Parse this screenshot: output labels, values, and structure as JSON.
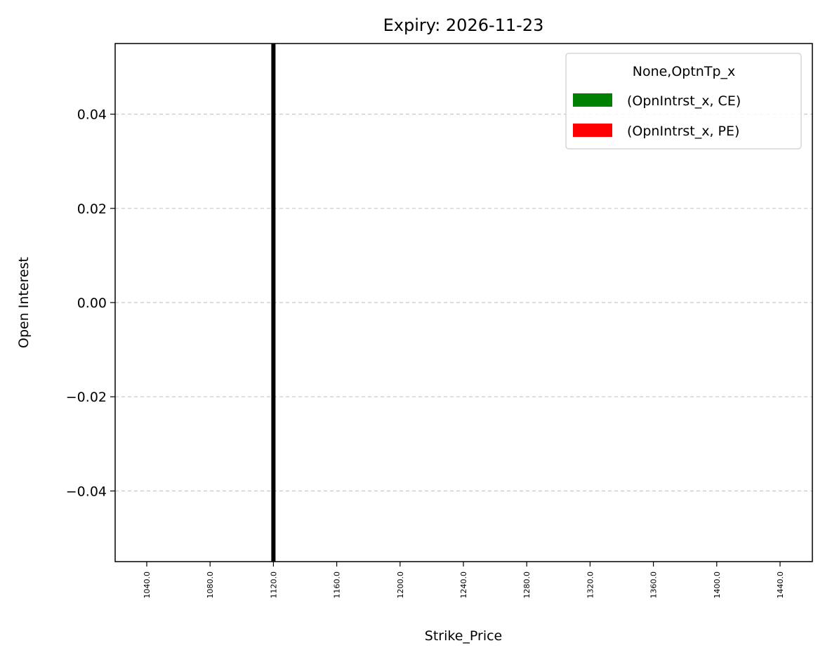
{
  "chart_data": {
    "type": "bar",
    "title": "Expiry: 2026-11-23",
    "xlabel": "Strike_Price",
    "ylabel": "Open Interest",
    "categories": [
      "1040.0",
      "1080.0",
      "1120.0",
      "1160.0",
      "1200.0",
      "1240.0",
      "1280.0",
      "1320.0",
      "1360.0",
      "1400.0",
      "1440.0"
    ],
    "series": [
      {
        "name": "(OpnIntrst_x, CE)",
        "color": "#008000",
        "values": [
          0,
          0,
          0,
          0,
          0,
          0,
          0,
          0,
          0,
          0,
          0
        ]
      },
      {
        "name": "(OpnIntrst_x, PE)",
        "color": "#ff0000",
        "values": [
          0,
          0,
          0,
          0,
          0,
          0,
          0,
          0,
          0,
          0,
          0
        ]
      }
    ],
    "ylim": [
      -0.055,
      0.055
    ],
    "yticks": [
      -0.04,
      -0.02,
      0.0,
      0.02,
      0.04
    ],
    "ytick_labels": [
      "−0.04",
      "−0.02",
      "0.00",
      "0.02",
      "0.04"
    ],
    "vline": {
      "category": "1120.0",
      "color": "#000000"
    },
    "grid": {
      "axis": "y",
      "style": "dashed",
      "color": "#c8c8c8"
    },
    "legend": {
      "title": "None,OptnTp_x",
      "placement": "top-right"
    }
  }
}
